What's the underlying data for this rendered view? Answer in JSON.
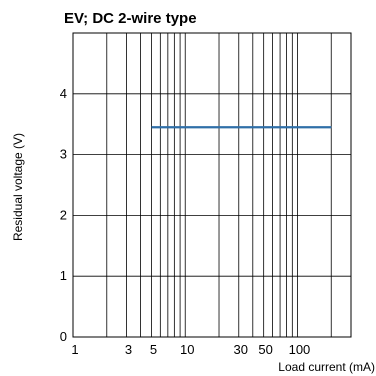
{
  "chart_data": {
    "type": "line",
    "title": "EV; DC 2-wire type",
    "xlabel": "Load current (mA)",
    "ylabel": "Residual voltage (V)",
    "x_scale": "log",
    "xlim": [
      1,
      300
    ],
    "ylim": [
      0,
      5
    ],
    "grid": true,
    "x_ticks": [
      1,
      3,
      5,
      10,
      30,
      50,
      100
    ],
    "x_tick_labels": [
      "1",
      "3",
      "5",
      "10",
      "30",
      "50",
      "100"
    ],
    "y_ticks": [
      0,
      1,
      2,
      3,
      4
    ],
    "y_tick_labels": [
      "0",
      "1",
      "2",
      "3",
      "4"
    ],
    "series": [
      {
        "x": [
          5,
          200
        ],
        "y": [
          3.45,
          3.45
        ],
        "color": "#2f6fa8"
      }
    ]
  }
}
